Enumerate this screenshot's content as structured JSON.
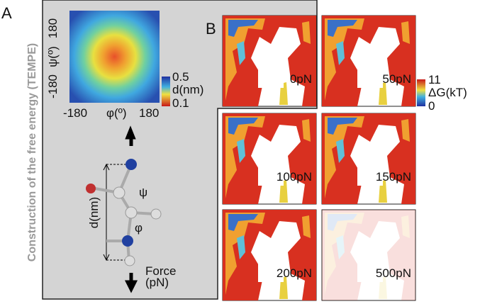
{
  "panel_a": {
    "label": "A",
    "side_title": "Construction of the free energy (TEMPE)",
    "map": {
      "y_max": "180",
      "y_label": "ψ(º)",
      "y_min": "-180",
      "x_min": "-180",
      "x_label": "φ(º)",
      "x_max": "180"
    },
    "colorbar": {
      "max": "0.5",
      "label": "d(nm)",
      "min": "0.1"
    },
    "molecule": {
      "distance_label": "d(nm)",
      "psi": "ψ",
      "phi": "φ",
      "force_label": [
        "Force",
        "(pN)"
      ]
    }
  },
  "panel_b": {
    "label": "B",
    "panels": [
      "0pN",
      "50pN",
      "100pN",
      "150pN",
      "200pN",
      "500pN"
    ],
    "colorbar": {
      "max": "11",
      "label": "ΔG(kT)",
      "min": "0"
    }
  }
}
